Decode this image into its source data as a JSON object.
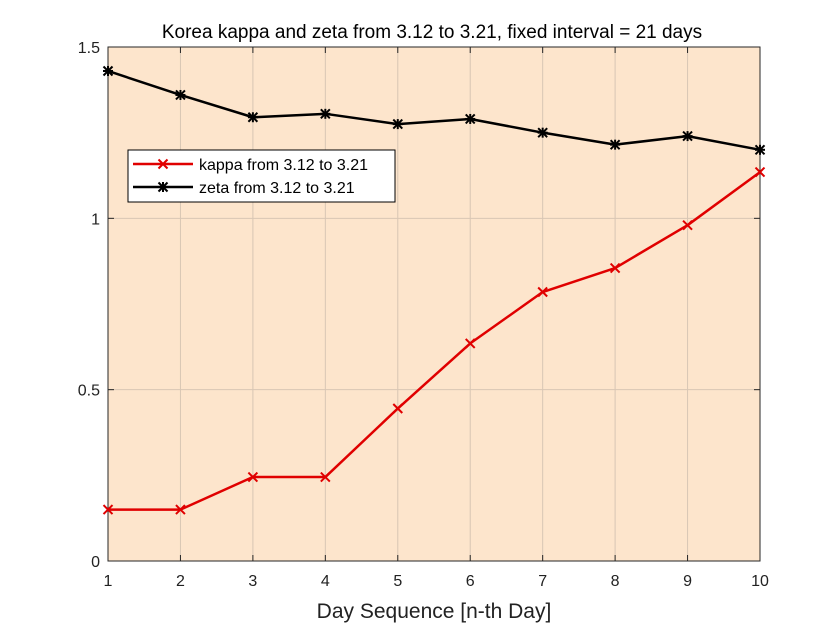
{
  "chart_data": {
    "type": "line",
    "title": "Korea kappa and zeta from 3.12 to 3.21, fixed interval = 21 days",
    "xlabel": "Day Sequence [n-th Day]",
    "ylabel": "",
    "x": [
      1,
      2,
      3,
      4,
      5,
      6,
      7,
      8,
      9,
      10
    ],
    "xlim": [
      1,
      10
    ],
    "ylim": [
      0,
      1.5
    ],
    "xticks": [
      "1",
      "2",
      "3",
      "4",
      "5",
      "6",
      "7",
      "8",
      "9",
      "10"
    ],
    "yticks": [
      "0",
      "0.5",
      "1",
      "1.5"
    ],
    "grid": true,
    "legend_position": "upper-left",
    "background_color": "#fde5cc",
    "series": [
      {
        "name": "kappa from 3.12 to 3.21",
        "color": "#e00000",
        "marker": "x",
        "values": [
          0.15,
          0.15,
          0.245,
          0.245,
          0.445,
          0.635,
          0.785,
          0.855,
          0.98,
          1.135
        ]
      },
      {
        "name": "zeta from 3.12 to 3.21",
        "color": "#000000",
        "marker": "asterisk",
        "values": [
          1.43,
          1.36,
          1.295,
          1.305,
          1.275,
          1.29,
          1.25,
          1.215,
          1.24,
          1.2
        ]
      }
    ]
  }
}
